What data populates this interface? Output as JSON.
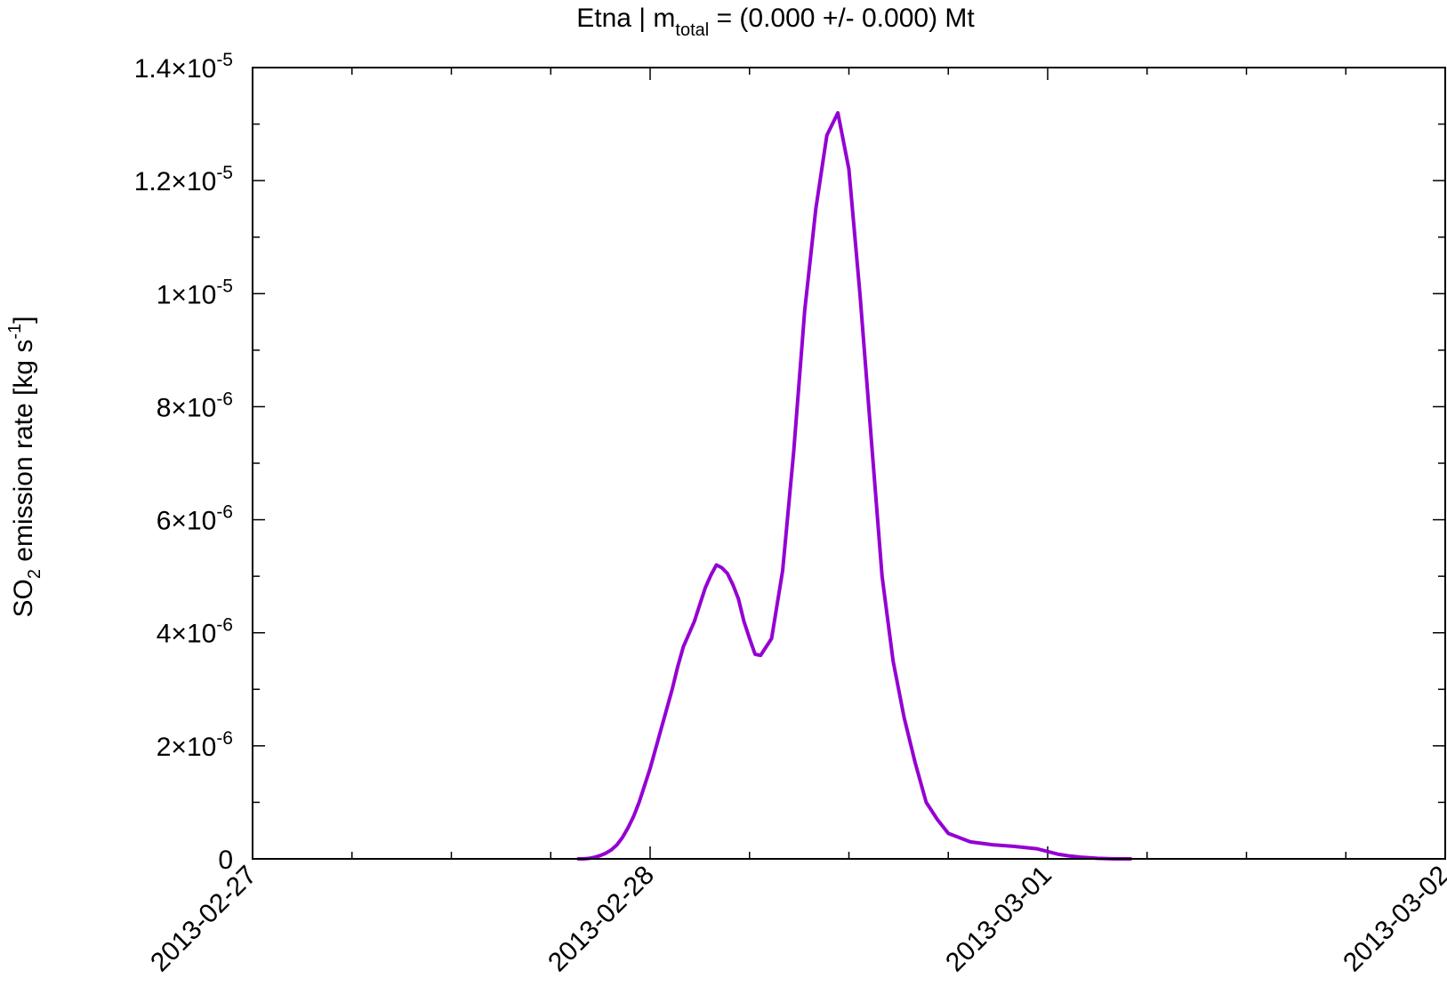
{
  "chart_data": {
    "type": "line",
    "title": {
      "main": "Etna | m",
      "sub": "total",
      "rest": " = (0.000 +/- 0.000) Mt"
    },
    "ylabel": {
      "main": "SO",
      "sub": "2",
      "mid": " emission rate [kg s",
      "sup": "-1",
      "end": "]"
    },
    "xlabel": "",
    "grid": false,
    "legend": "none",
    "line_color": "#9400d3",
    "xlim": [
      "2013-02-27 00:00",
      "2013-03-02 00:00"
    ],
    "x_ticks": [
      "2013-02-27",
      "2013-02-28",
      "2013-03-01",
      "2013-03-02"
    ],
    "ylim": [
      0,
      1.4e-05
    ],
    "y_ticks": [
      {
        "value": 0,
        "mant": "0",
        "exp": ""
      },
      {
        "value": 2e-06,
        "mant": "2×10",
        "exp": "-6"
      },
      {
        "value": 4e-06,
        "mant": "4×10",
        "exp": "-6"
      },
      {
        "value": 6e-06,
        "mant": "6×10",
        "exp": "-6"
      },
      {
        "value": 8e-06,
        "mant": "8×10",
        "exp": "-6"
      },
      {
        "value": 1e-05,
        "mant": "1×10",
        "exp": "-5"
      },
      {
        "value": 1.2e-05,
        "mant": "1.2×10",
        "exp": "-5"
      },
      {
        "value": 1.4e-05,
        "mant": "1.4×10",
        "exp": "-5"
      }
    ],
    "series": [
      {
        "x": [
          "2013-02-27 19:40",
          "2013-02-27 20:00",
          "2013-02-27 20:20",
          "2013-02-27 20:40",
          "2013-02-27 21:00",
          "2013-02-27 21:20",
          "2013-02-27 21:40",
          "2013-02-27 22:00",
          "2013-02-27 22:20",
          "2013-02-27 22:40",
          "2013-02-27 23:00",
          "2013-02-27 23:20",
          "2013-02-27 23:40",
          "2013-02-28 00:00",
          "2013-02-28 00:40",
          "2013-02-28 01:20",
          "2013-02-28 01:40",
          "2013-02-28 02:00",
          "2013-02-28 02:40",
          "2013-02-28 03:00",
          "2013-02-28 03:20",
          "2013-02-28 03:40",
          "2013-02-28 04:00",
          "2013-02-28 04:20",
          "2013-02-28 04:40",
          "2013-02-28 05:00",
          "2013-02-28 05:20",
          "2013-02-28 05:40",
          "2013-02-28 06:00",
          "2013-02-28 06:20",
          "2013-02-28 06:40",
          "2013-02-28 07:20",
          "2013-02-28 08:00",
          "2013-02-28 08:40",
          "2013-02-28 09:20",
          "2013-02-28 10:00",
          "2013-02-28 10:40",
          "2013-02-28 11:20",
          "2013-02-28 12:00",
          "2013-02-28 12:40",
          "2013-02-28 13:20",
          "2013-02-28 14:00",
          "2013-02-28 14:40",
          "2013-02-28 15:20",
          "2013-02-28 16:00",
          "2013-02-28 16:40",
          "2013-02-28 17:20",
          "2013-02-28 18:00",
          "2013-02-28 19:20",
          "2013-02-28 20:40",
          "2013-02-28 22:00",
          "2013-02-28 23:20",
          "2013-03-01 00:40",
          "2013-03-01 01:20",
          "2013-03-01 02:00",
          "2013-03-01 03:00",
          "2013-03-01 04:00",
          "2013-03-01 05:00"
        ],
        "y": [
          0,
          0,
          1e-08,
          3e-08,
          6e-08,
          1e-07,
          1.6e-07,
          2.5e-07,
          3.8e-07,
          5.5e-07,
          7.5e-07,
          1e-06,
          1.3e-06,
          1.6e-06,
          2.3e-06,
          3e-06,
          3.4e-06,
          3.75e-06,
          4.2e-06,
          4.5e-06,
          4.8e-06,
          5.02e-06,
          5.2e-06,
          5.15e-06,
          5.05e-06,
          4.85e-06,
          4.6e-06,
          4.2e-06,
          3.9e-06,
          3.62e-06,
          3.6e-06,
          3.9e-06,
          5.1e-06,
          7.2e-06,
          9.7e-06,
          1.15e-05,
          1.28e-05,
          1.32e-05,
          1.22e-05,
          1e-05,
          7.5e-06,
          5e-06,
          3.5e-06,
          2.5e-06,
          1.7e-06,
          1e-06,
          7e-07,
          4.5e-07,
          3e-07,
          2.5e-07,
          2.2e-07,
          1.8e-07,
          8e-08,
          5e-08,
          3e-08,
          1e-08,
          0,
          0
        ]
      }
    ]
  }
}
